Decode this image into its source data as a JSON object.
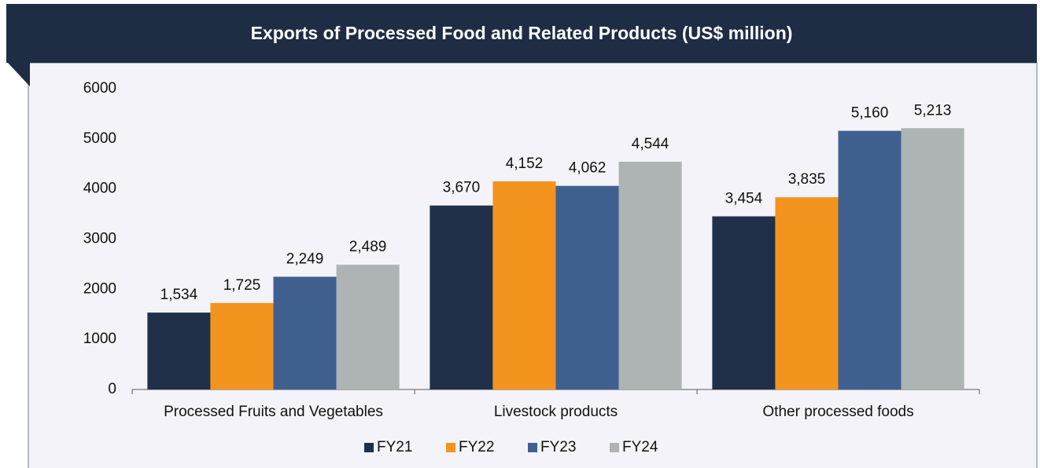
{
  "chart_data": {
    "type": "bar",
    "title": "Exports of Processed Food and Related Products (US$ million)",
    "categories": [
      "Processed Fruits and Vegetables",
      "Livestock products",
      "Other processed foods"
    ],
    "series": [
      {
        "name": "FY21",
        "color": "#1f3048",
        "values": [
          1534,
          3670,
          3454
        ],
        "value_labels": [
          "1,534",
          "3,670",
          "3,454"
        ]
      },
      {
        "name": "FY22",
        "color": "#f3941f",
        "values": [
          1725,
          4152,
          3835
        ],
        "value_labels": [
          "1,725",
          "4,152",
          "3,835"
        ]
      },
      {
        "name": "FY23",
        "color": "#3f5f8f",
        "values": [
          2249,
          4062,
          5160
        ],
        "value_labels": [
          "2,249",
          "4,062",
          "5,160"
        ]
      },
      {
        "name": "FY24",
        "color": "#aeb3b3",
        "values": [
          2489,
          4544,
          5213
        ],
        "value_labels": [
          "2,489",
          "4,544",
          "5,213"
        ]
      }
    ],
    "ylim": [
      0,
      6000
    ],
    "yticks": [
      0,
      1000,
      2000,
      3000,
      4000,
      5000,
      6000
    ],
    "legend": "bottom"
  }
}
